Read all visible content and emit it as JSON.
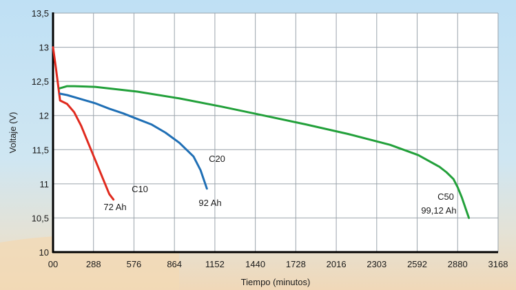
{
  "chart_data": {
    "type": "line",
    "xlabel": "Tiempo (minutos)",
    "ylabel": "Voltaje (V)",
    "xlim": [
      0,
      3168
    ],
    "ylim": [
      10,
      13.5
    ],
    "x_tick_labels": [
      "00",
      "288",
      "576",
      "864",
      "1152",
      "1440",
      "1728",
      "2016",
      "2303",
      "2592",
      "2880",
      "3168"
    ],
    "y_tick_labels": [
      "10",
      "10,5",
      "11",
      "11,5",
      "12",
      "12,5",
      "13",
      "13,5"
    ],
    "grid": true,
    "series": [
      {
        "name": "C10",
        "capacity": "72 Ah",
        "color": "#e02a1e",
        "x": [
          0,
          20,
          50,
          100,
          150,
          200,
          250,
          300,
          350,
          400,
          430
        ],
        "y": [
          13.0,
          12.7,
          12.22,
          12.17,
          12.05,
          11.85,
          11.6,
          11.35,
          11.1,
          10.85,
          10.77
        ]
      },
      {
        "name": "C20",
        "capacity": "92 Ah",
        "color": "#1f6fb5",
        "x": [
          50,
          100,
          200,
          300,
          400,
          500,
          600,
          700,
          800,
          900,
          1000,
          1050,
          1095
        ],
        "y": [
          12.32,
          12.3,
          12.24,
          12.18,
          12.1,
          12.03,
          11.95,
          11.87,
          11.75,
          11.6,
          11.4,
          11.2,
          10.93
        ]
      },
      {
        "name": "C50",
        "capacity": "99,12 Ah",
        "color": "#22a03a",
        "x": [
          50,
          100,
          150,
          300,
          600,
          900,
          1200,
          1500,
          1800,
          2100,
          2400,
          2600,
          2750,
          2800,
          2850,
          2880,
          2910,
          2940,
          2960
        ],
        "y": [
          12.4,
          12.43,
          12.43,
          12.42,
          12.35,
          12.25,
          12.13,
          12.0,
          11.87,
          11.73,
          11.57,
          11.42,
          11.25,
          11.17,
          11.07,
          10.95,
          10.8,
          10.62,
          10.5
        ]
      }
    ]
  },
  "colors": {
    "plot_background": "#ffffff",
    "grid": "#9aa3ab",
    "page_background_top": "#bfe0f4",
    "page_background_bottom": "#f0d8b8"
  }
}
